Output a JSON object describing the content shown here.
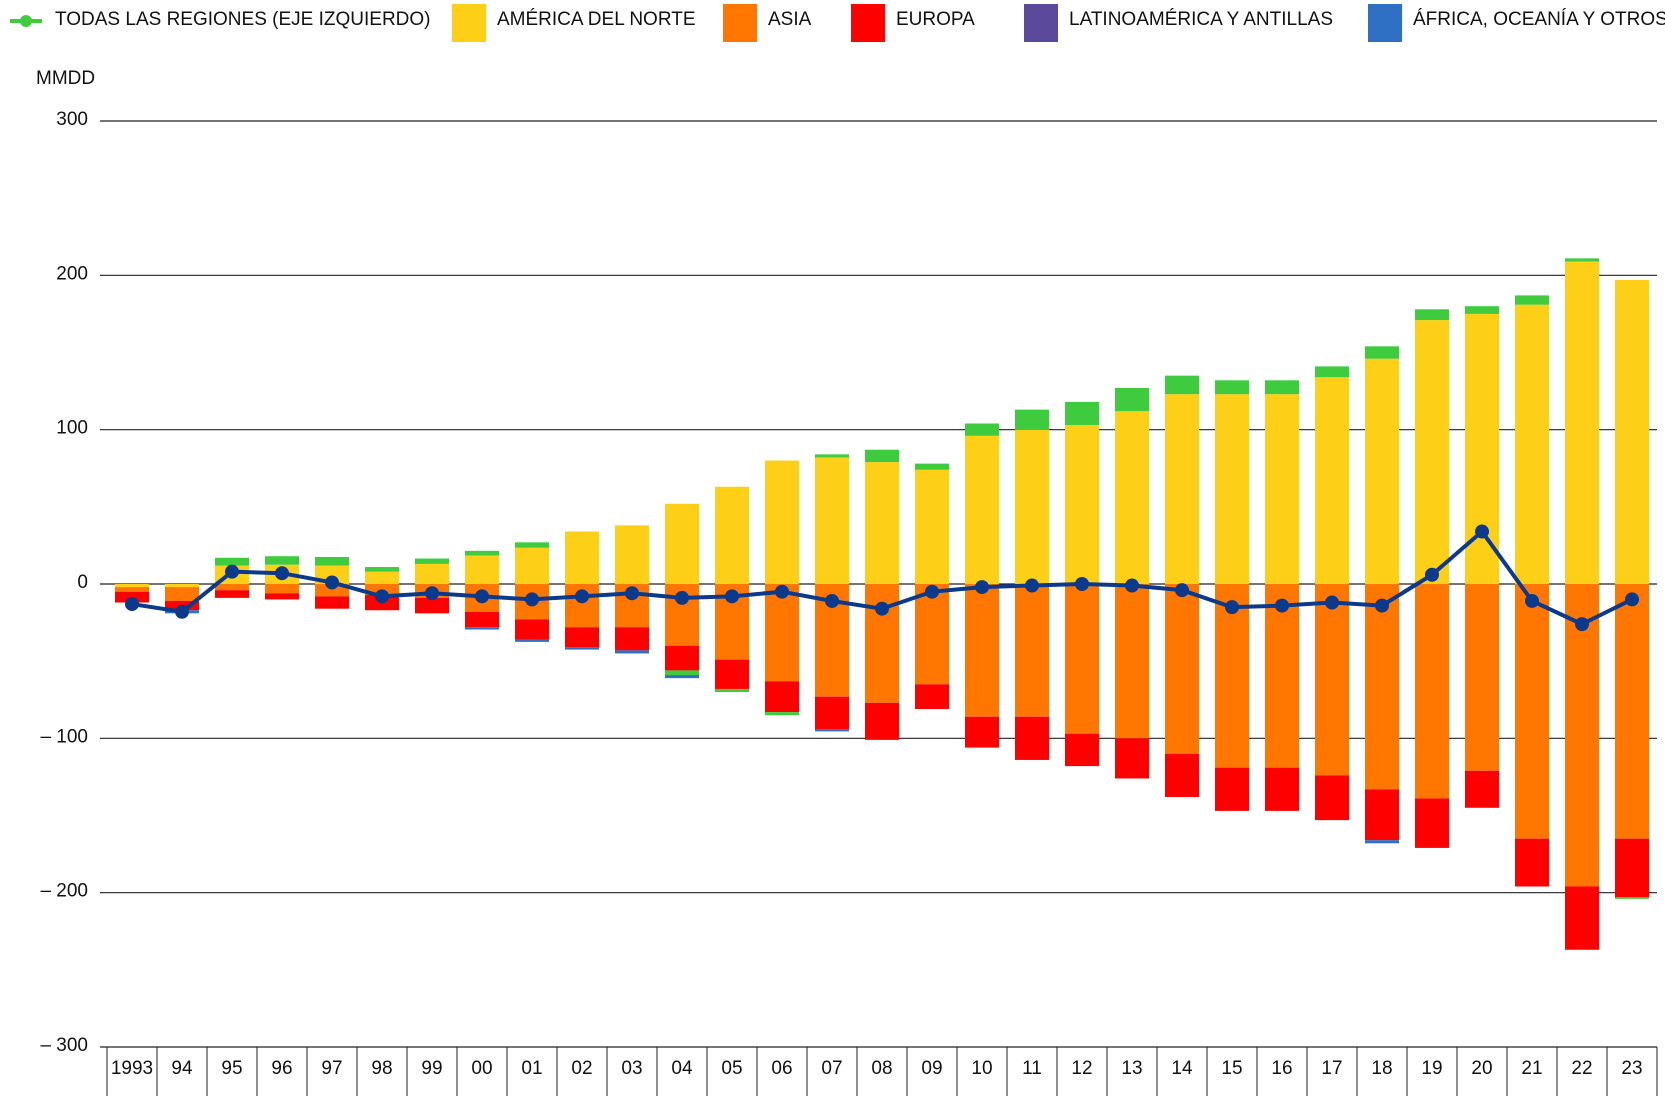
{
  "chart_data": {
    "type": "bar",
    "stacked": true,
    "y_unit_label": "MMDD",
    "categories": [
      "1993",
      "94",
      "95",
      "96",
      "97",
      "98",
      "99",
      "00",
      "01",
      "02",
      "03",
      "04",
      "05",
      "06",
      "07",
      "08",
      "09",
      "10",
      "11",
      "12",
      "13",
      "14",
      "15",
      "16",
      "17",
      "18",
      "19",
      "20",
      "21",
      "22",
      "23"
    ],
    "series": [
      {
        "name": "TODAS LAS REGIONES (EJE IZQUIERDO)",
        "type": "line",
        "color": "#0b3a8c",
        "legend_color": "#3ecc3e",
        "values": [
          -13,
          -18,
          8,
          7,
          1,
          -8,
          -6,
          -8,
          -10,
          -8,
          -6,
          -9,
          -8,
          -5,
          -11,
          -16,
          -5,
          -2,
          -1,
          0,
          -1,
          -4,
          -15,
          -14,
          -12,
          -14,
          6,
          34,
          -11,
          -26,
          -10
        ]
      },
      {
        "name": "AMÉRICA DEL NORTE",
        "color": "#fdd017",
        "values": [
          -2,
          -2,
          12,
          12.5,
          12,
          8,
          13,
          18.5,
          23.5,
          34,
          38,
          52,
          63,
          80,
          82,
          79,
          74,
          96,
          100,
          103,
          112,
          123,
          123,
          123,
          134,
          146,
          171,
          175,
          181,
          209,
          197
        ]
      },
      {
        "name": "ASIA",
        "color": "#ff7700",
        "values": [
          -3,
          -9,
          -4,
          -6,
          -8,
          -7,
          -9,
          -18,
          -23,
          -28,
          -28,
          -40,
          -49,
          -63,
          -73,
          -77,
          -65,
          -86,
          -86,
          -97,
          -100,
          -110,
          -119,
          -119,
          -124,
          -133,
          -139,
          -121,
          -165,
          -196,
          -165
        ]
      },
      {
        "name": "EUROPA",
        "color": "#ff0000",
        "values": [
          -7,
          -6,
          -5,
          -4,
          -8,
          -10,
          -10,
          -10,
          -13,
          -13,
          -15,
          -16,
          -19,
          -20,
          -21,
          -24,
          -16,
          -20,
          -28,
          -21,
          -26,
          -28,
          -28,
          -28,
          -29,
          -33,
          -32,
          -24,
          -31,
          -41,
          -38
        ]
      },
      {
        "name": "LATINOAMÉRICA Y ANTILLAS",
        "color": "#3ecc3e",
        "legend_color": "#5b4a9b",
        "values": [
          0,
          0,
          5,
          5.5,
          5.5,
          3,
          3.5,
          3,
          3.5,
          0,
          0,
          -3,
          -2,
          -2,
          2,
          8,
          4,
          8,
          13,
          15,
          15,
          12,
          9,
          9,
          7,
          8,
          7,
          5,
          6,
          2,
          -1
        ]
      },
      {
        "name": "ÁFRICA, OCEANÍA Y OTROS",
        "color": "#2f6fc4",
        "values": [
          0,
          -2,
          0,
          0,
          0,
          0,
          0,
          -1.5,
          -1.5,
          -1.5,
          -2,
          -2,
          0,
          0,
          -1.5,
          0,
          0,
          0,
          0,
          0,
          0,
          0,
          0,
          0,
          0,
          -2,
          0,
          0,
          0,
          0,
          0
        ]
      }
    ],
    "ylim": [
      -300,
      300
    ],
    "yticks": [
      {
        "value": -300,
        "label": "– 300"
      },
      {
        "value": -200,
        "label": "– 200"
      },
      {
        "value": -100,
        "label": "– 100"
      },
      0,
      100,
      200,
      300
    ],
    "grid": true
  }
}
